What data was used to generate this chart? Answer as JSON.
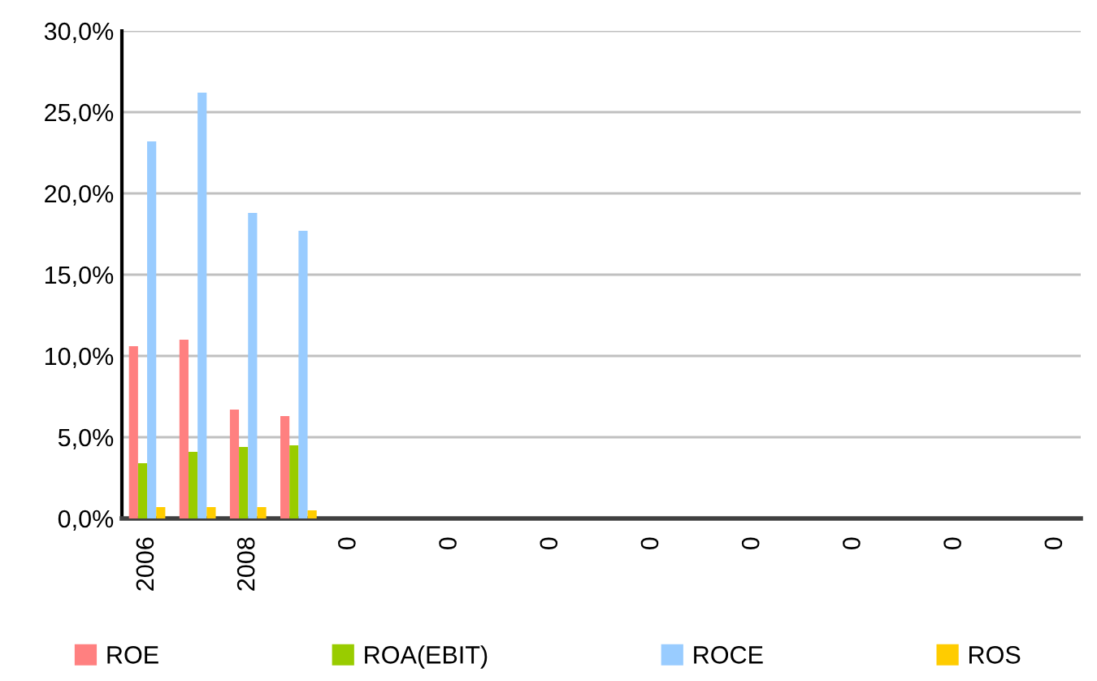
{
  "chart_data": {
    "type": "bar",
    "categories": [
      "2006",
      null,
      "2008",
      null,
      "0",
      null,
      "0",
      null,
      "0",
      null,
      "0",
      null,
      "0",
      null,
      "0",
      null,
      "0",
      null,
      "0"
    ],
    "series": [
      {
        "name": "ROE",
        "color": "#ff8080",
        "values": [
          10.6,
          11.0,
          6.7,
          6.3,
          null,
          null,
          null,
          null,
          null,
          null,
          null,
          null,
          null,
          null,
          null,
          null,
          null,
          null,
          null
        ]
      },
      {
        "name": "ROA(EBIT)",
        "color": "#99cc00",
        "values": [
          3.4,
          4.1,
          4.4,
          4.5,
          null,
          null,
          null,
          null,
          null,
          null,
          null,
          null,
          null,
          null,
          null,
          null,
          null,
          null,
          null
        ]
      },
      {
        "name": "ROCE",
        "color": "#99ccff",
        "values": [
          23.2,
          26.2,
          18.8,
          17.7,
          null,
          null,
          null,
          null,
          null,
          null,
          null,
          null,
          null,
          null,
          null,
          null,
          null,
          null,
          null
        ]
      },
      {
        "name": "ROS",
        "color": "#ffcc00",
        "values": [
          0.7,
          0.7,
          0.7,
          0.5,
          null,
          null,
          null,
          null,
          null,
          null,
          null,
          null,
          null,
          null,
          null,
          null,
          null,
          null,
          null
        ]
      }
    ],
    "ylim": [
      0,
      30
    ],
    "yticks": [
      {
        "value": 0,
        "label": "0,0%"
      },
      {
        "value": 5,
        "label": "5,0%"
      },
      {
        "value": 10,
        "label": "10,0%"
      },
      {
        "value": 15,
        "label": "15,0%"
      },
      {
        "value": 20,
        "label": "20,0%"
      },
      {
        "value": 25,
        "label": "25,0%"
      },
      {
        "value": 30,
        "label": "30,0%"
      }
    ],
    "grid": "y",
    "legend": "bottom"
  }
}
